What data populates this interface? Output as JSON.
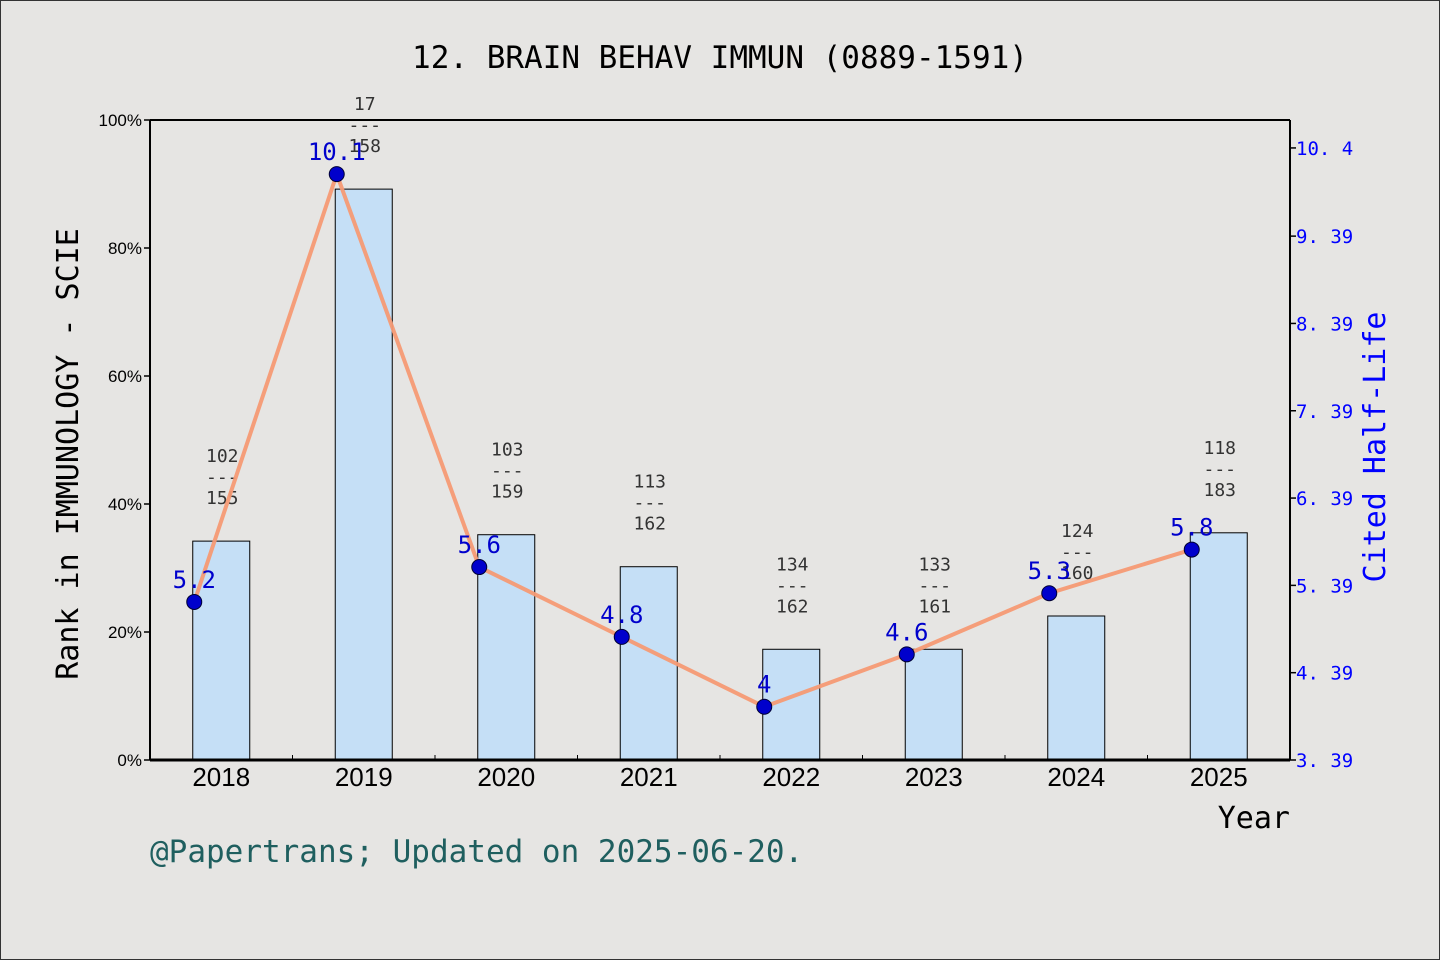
{
  "chart_data": {
    "type": "bar",
    "title": "12. BRAIN BEHAV IMMUN (0889-1591)",
    "xlabel": "Year",
    "ylabel_left": "Rank in IMMUNOLOGY - SCIE",
    "ylabel_right": "Cited Half-Life",
    "categories": [
      "2018",
      "2019",
      "2020",
      "2021",
      "2022",
      "2023",
      "2024",
      "2025"
    ],
    "y_left_ticks": [
      "0%",
      "20%",
      "40%",
      "60%",
      "80%",
      "100%"
    ],
    "ylim_left": [
      0,
      100
    ],
    "y_right_ticks": [
      "3. 39",
      "4. 39",
      "5. 39",
      "6. 39",
      "7. 39",
      "8. 39",
      "9. 39",
      "10. 4"
    ],
    "y_right_tick_values": [
      3.39,
      4.39,
      5.39,
      6.39,
      7.39,
      8.39,
      9.39,
      10.4
    ],
    "ylim_right": [
      3.39,
      10.72
    ],
    "rank_bars": [
      {
        "rank": "102",
        "total": "155",
        "percent": 34.2
      },
      {
        "rank": "17",
        "total": "158",
        "percent": 89.2
      },
      {
        "rank": "103",
        "total": "159",
        "percent": 35.2
      },
      {
        "rank": "113",
        "total": "162",
        "percent": 30.2
      },
      {
        "rank": "134",
        "total": "162",
        "percent": 17.3
      },
      {
        "rank": "133",
        "total": "161",
        "percent": 17.3
      },
      {
        "rank": "124",
        "total": "160",
        "percent": 22.5
      },
      {
        "rank": "118",
        "total": "183",
        "percent": 35.5
      }
    ],
    "half_life": {
      "labels": [
        "5.2",
        "10.1",
        "5.6",
        "4.8",
        "4",
        "4.6",
        "5.3",
        "5.8"
      ],
      "values": [
        5.2,
        10.1,
        5.6,
        4.8,
        4.0,
        4.6,
        5.3,
        5.8
      ]
    },
    "separator": "---",
    "grid": false,
    "colors": {
      "bar_fill": "#c5dff6",
      "line": "#f59a74",
      "marker": "#0000cc",
      "right_axis": "#0000ff",
      "fraction_text": "#333333",
      "footer": "#1f5f5f"
    }
  },
  "footer": "@Papertrans; Updated on 2025-06-20."
}
